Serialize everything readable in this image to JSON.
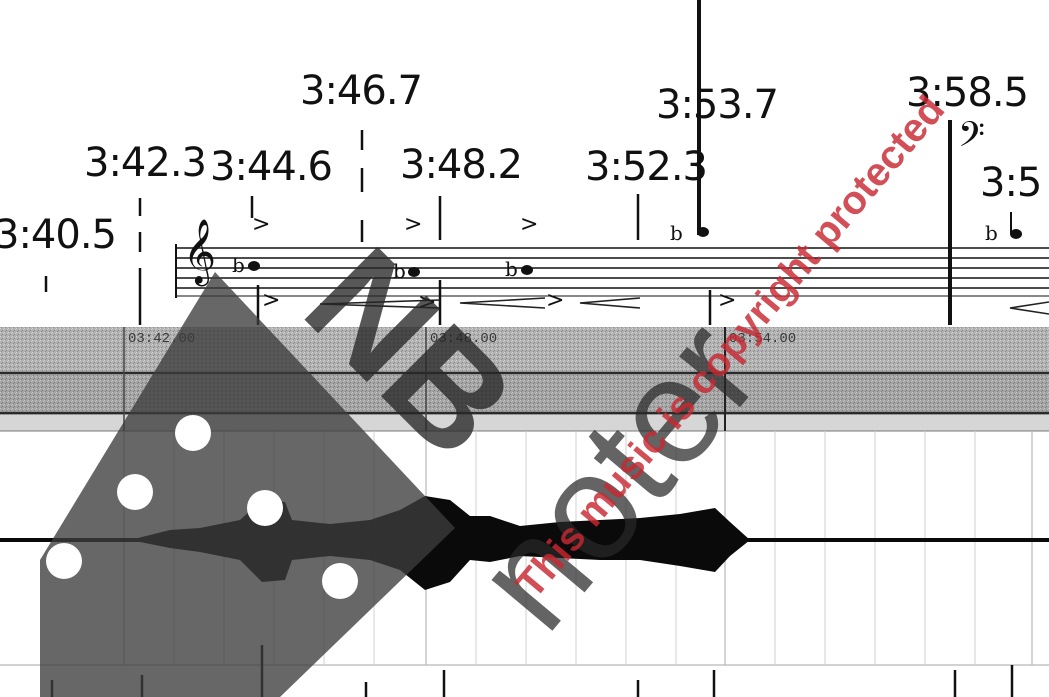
{
  "score": {
    "timestamps": [
      "3:40.5",
      "3:42.3",
      "3:44.6",
      "3:46.7",
      "3:48.2",
      "3:52.3",
      "3:53.7",
      "3:58.5",
      "3:5"
    ],
    "ruler_labels": [
      "03:42.00",
      "03:48.00",
      "03:54.00"
    ],
    "accent_mark": ">",
    "clef_glyph": "𝄞",
    "bass_clef_glyph": "𝄢"
  },
  "watermark": {
    "brand_logo": "NB",
    "brand_name": "noter",
    "notice": "This music is copyright protected",
    "notice_color": "#c82832",
    "logo_color": "#333333"
  }
}
